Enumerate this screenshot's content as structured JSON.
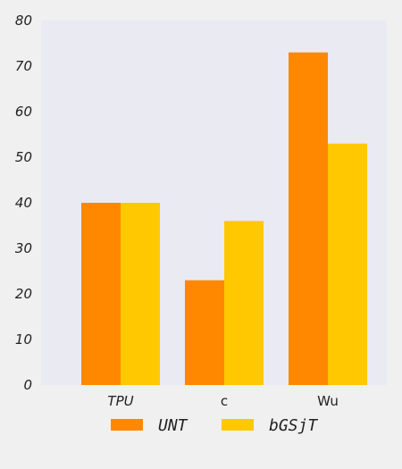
{
  "chart_data": {
    "type": "bar",
    "categories": [
      "TPU",
      "c",
      "Wu"
    ],
    "series": [
      {
        "name": "UNT",
        "values": [
          40,
          23,
          73
        ],
        "color": "#ff8800"
      },
      {
        "name": "bGSjT",
        "values": [
          40,
          36,
          53
        ],
        "color": "#ffc800"
      }
    ],
    "yticks": [
      "0",
      "10",
      "20",
      "30",
      "40",
      "50",
      "60",
      "70",
      "80"
    ],
    "ylim": [
      0,
      80
    ],
    "grid": false,
    "legend_position": "bottom-center",
    "plot_background": "#eaeaf2",
    "page_background": "#f0f0f0"
  }
}
